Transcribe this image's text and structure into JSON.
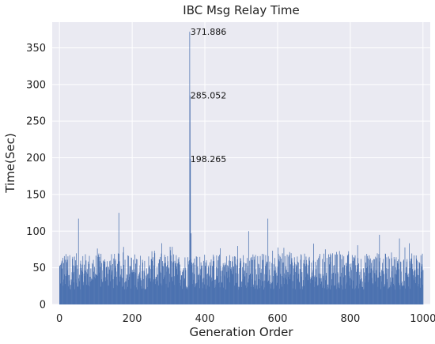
{
  "chart_data": {
    "type": "bar",
    "title": "IBC Msg Relay Time",
    "xlabel": "Generation Order",
    "ylabel": "Time(Sec)",
    "xlim": [
      -20,
      1020
    ],
    "ylim": [
      0,
      385
    ],
    "xticks": [
      0,
      200,
      400,
      600,
      800,
      1000
    ],
    "yticks": [
      0,
      50,
      100,
      150,
      200,
      250,
      300,
      350
    ],
    "grid": true,
    "n_points": 1001,
    "baseline_range": [
      20,
      70
    ],
    "bar_color": "#4C72B0",
    "background_color": "#EAEAF2",
    "grid_color": "#FFFFFF",
    "spikes": [
      {
        "x": 52,
        "y": 117
      },
      {
        "x": 163,
        "y": 125
      },
      {
        "x": 358,
        "y": 371.886
      },
      {
        "x": 359,
        "y": 285.052
      },
      {
        "x": 360,
        "y": 198.265
      },
      {
        "x": 362,
        "y": 97
      },
      {
        "x": 573,
        "y": 117
      },
      {
        "x": 520,
        "y": 100
      },
      {
        "x": 880,
        "y": 95
      },
      {
        "x": 935,
        "y": 90
      }
    ],
    "annotations": [
      {
        "x": 358,
        "y": 371.886,
        "text": "371.886"
      },
      {
        "x": 358,
        "y": 285.052,
        "text": "285.052"
      },
      {
        "x": 358,
        "y": 198.265,
        "text": "198.265"
      }
    ]
  }
}
